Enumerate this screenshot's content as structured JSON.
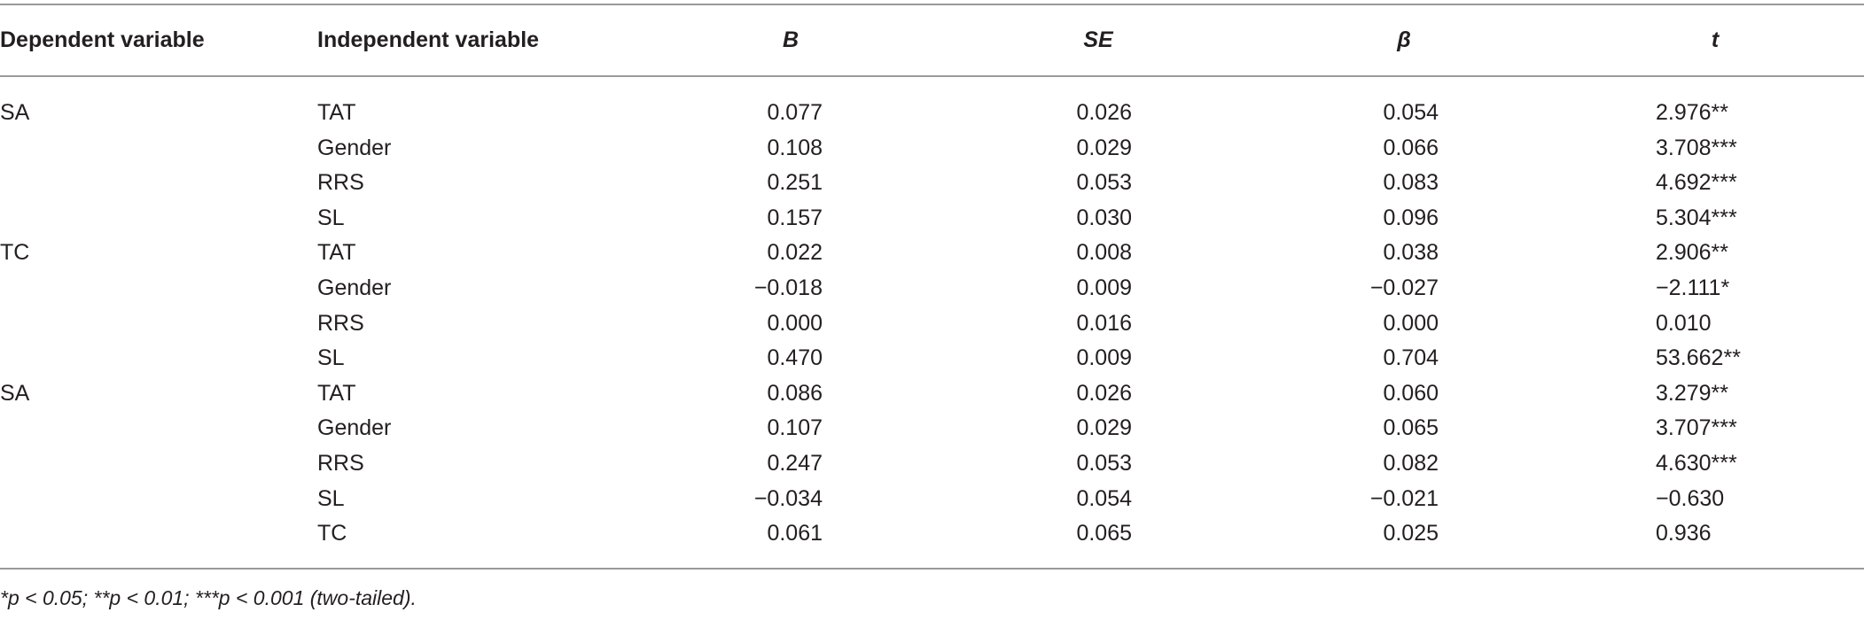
{
  "table": {
    "headers": [
      "Dependent variable",
      "Independent variable",
      "B",
      "SE",
      "β",
      "t"
    ],
    "groups": [
      {
        "dependent": "SA",
        "rows": [
          [
            "TAT",
            "0.077",
            "0.026",
            "0.054",
            "2.976**"
          ],
          [
            "Gender",
            "0.108",
            "0.029",
            "0.066",
            "3.708***"
          ],
          [
            "RRS",
            "0.251",
            "0.053",
            "0.083",
            "4.692***"
          ],
          [
            "SL",
            "0.157",
            "0.030",
            "0.096",
            "5.304***"
          ]
        ]
      },
      {
        "dependent": "TC",
        "rows": [
          [
            "TAT",
            "0.022",
            "0.008",
            "0.038",
            "2.906**"
          ],
          [
            "Gender",
            "−0.018",
            "0.009",
            "−0.027",
            "−2.111*"
          ],
          [
            "RRS",
            "0.000",
            "0.016",
            "0.000",
            "0.010"
          ],
          [
            "SL",
            "0.470",
            "0.009",
            "0.704",
            "53.662**"
          ]
        ]
      },
      {
        "dependent": "SA",
        "rows": [
          [
            "TAT",
            "0.086",
            "0.026",
            "0.060",
            "3.279**"
          ],
          [
            "Gender",
            "0.107",
            "0.029",
            "0.065",
            "3.707***"
          ],
          [
            "RRS",
            "0.247",
            "0.053",
            "0.082",
            "4.630***"
          ],
          [
            "SL",
            "−0.034",
            "0.054",
            "−0.021",
            "−0.630"
          ],
          [
            "TC",
            "0.061",
            "0.065",
            "0.025",
            "0.936"
          ]
        ]
      }
    ],
    "footnote": "*p < 0.05; **p < 0.01; ***p < 0.001 (two-tailed)."
  }
}
